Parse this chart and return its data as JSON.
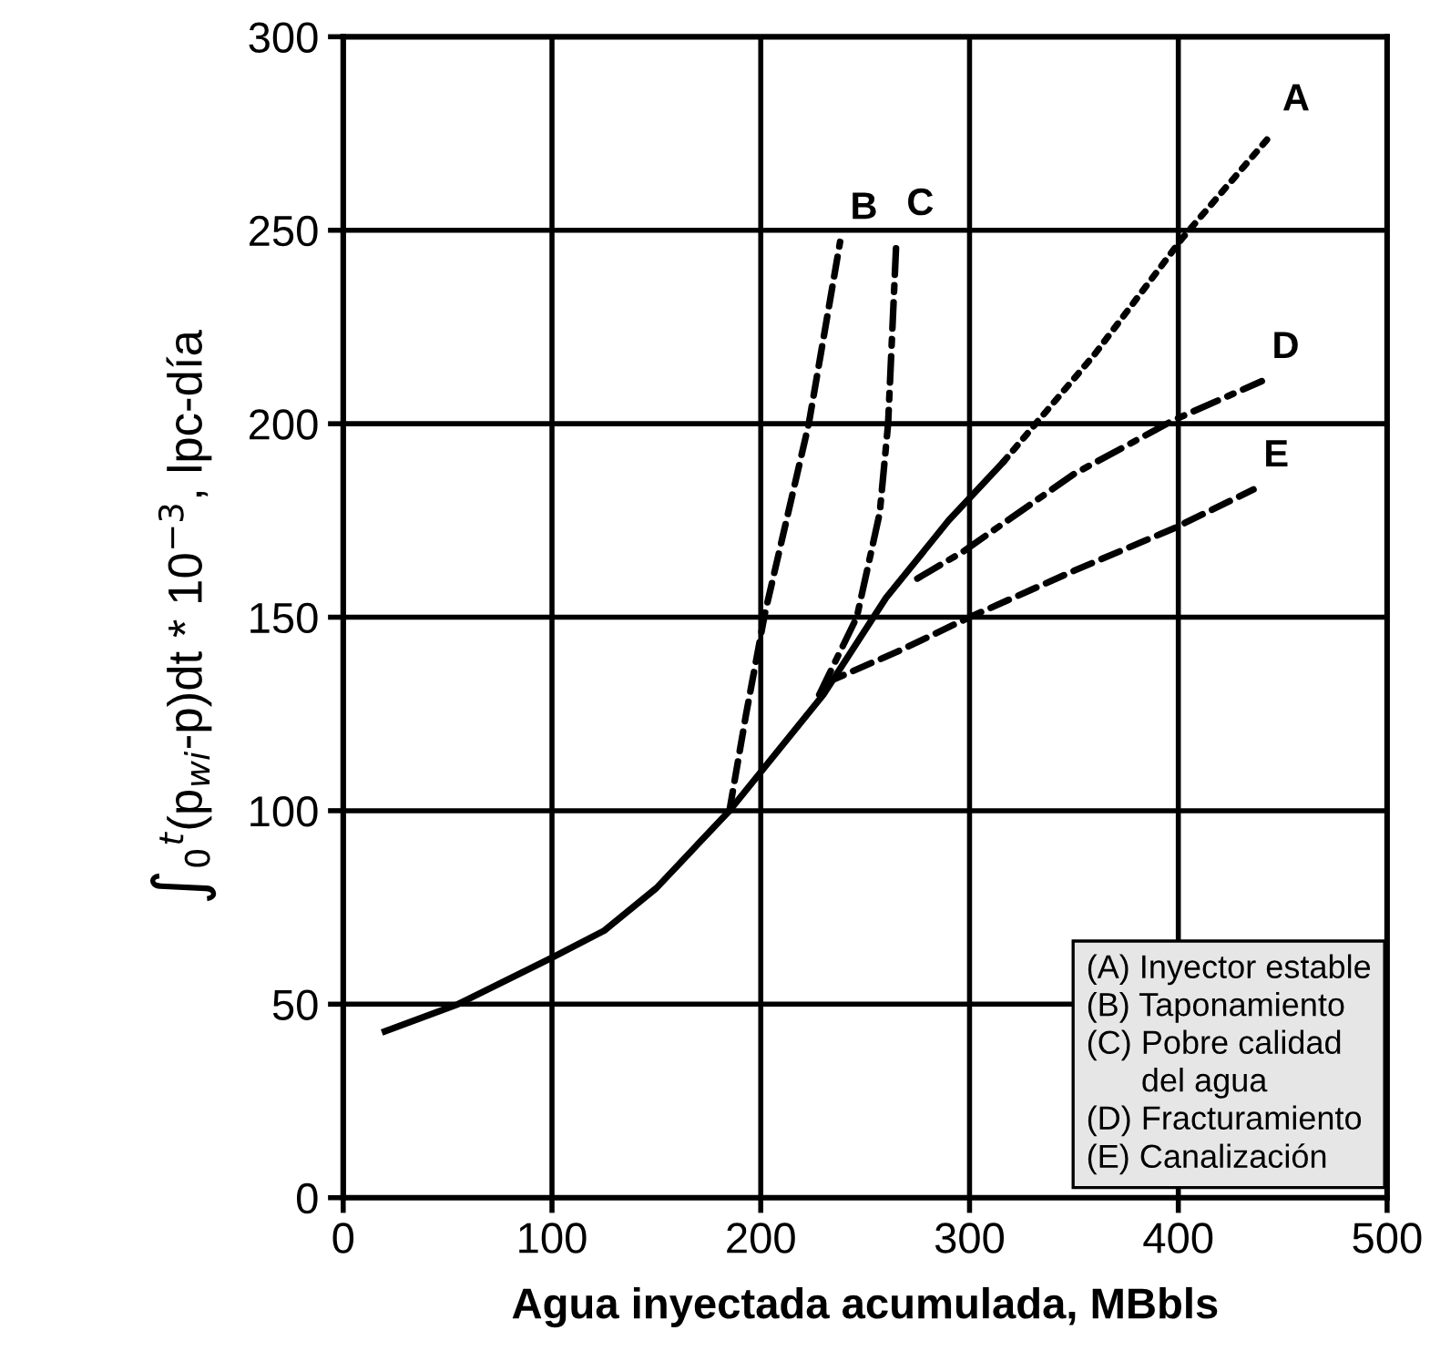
{
  "chart_data": {
    "type": "line",
    "xlabel": "Agua inyectada acumulada, MBbls",
    "ylabel": "∫$_{0}$$^{t}$(p$_{wi}$-p)dt * 10$^{−3}$, lpc-día",
    "xlim": [
      0,
      500
    ],
    "xticks": [
      0,
      100,
      200,
      300,
      400,
      500
    ],
    "ylim": [
      0,
      300
    ],
    "yticks": [
      0,
      50,
      100,
      150,
      200,
      250,
      300
    ],
    "grid": true,
    "legend": false,
    "marker": "none",
    "series": [
      {
        "color": "#000000",
        "line_style": "solid",
        "x": [
          20,
          55,
          100,
          125,
          150,
          185,
          200,
          230,
          260,
          290,
          316
        ],
        "values": [
          43,
          50,
          62,
          69,
          80,
          100,
          110,
          130,
          155,
          175,
          190
        ]
      },
      {
        "name": "A",
        "color": "#000000",
        "line_style": "dotted",
        "x": [
          316,
          360,
          402,
          445
        ],
        "values": [
          190,
          218,
          248,
          275
        ]
      },
      {
        "name": "B",
        "color": "#000000",
        "line_style": "dashed",
        "x": [
          185,
          193,
          202,
          223,
          238
        ],
        "values": [
          100,
          125,
          151,
          200,
          247
        ]
      },
      {
        "name": "C",
        "color": "#000000",
        "line_style": "dashdot",
        "x": [
          228,
          237,
          246,
          257,
          261,
          265
        ],
        "values": [
          130,
          140,
          150,
          177,
          200,
          248
        ]
      },
      {
        "name": "D",
        "color": "#000000",
        "line_style": "dashdot",
        "x": [
          275,
          297,
          350,
          398,
          440
        ],
        "values": [
          160,
          167,
          187,
          201,
          211
        ]
      },
      {
        "name": "E",
        "color": "#000000",
        "line_style": "dashed",
        "x": [
          231,
          265,
          300,
          350,
          398,
          436
        ],
        "values": [
          133,
          141,
          150,
          162,
          173,
          183
        ]
      }
    ],
    "annotations": [
      "(A) Inyector estable\n(B) Taponamiento\n(C) Pobre calidad\n      del agua\n(D) Fracturamiento\n(E) Canalización"
    ]
  }
}
